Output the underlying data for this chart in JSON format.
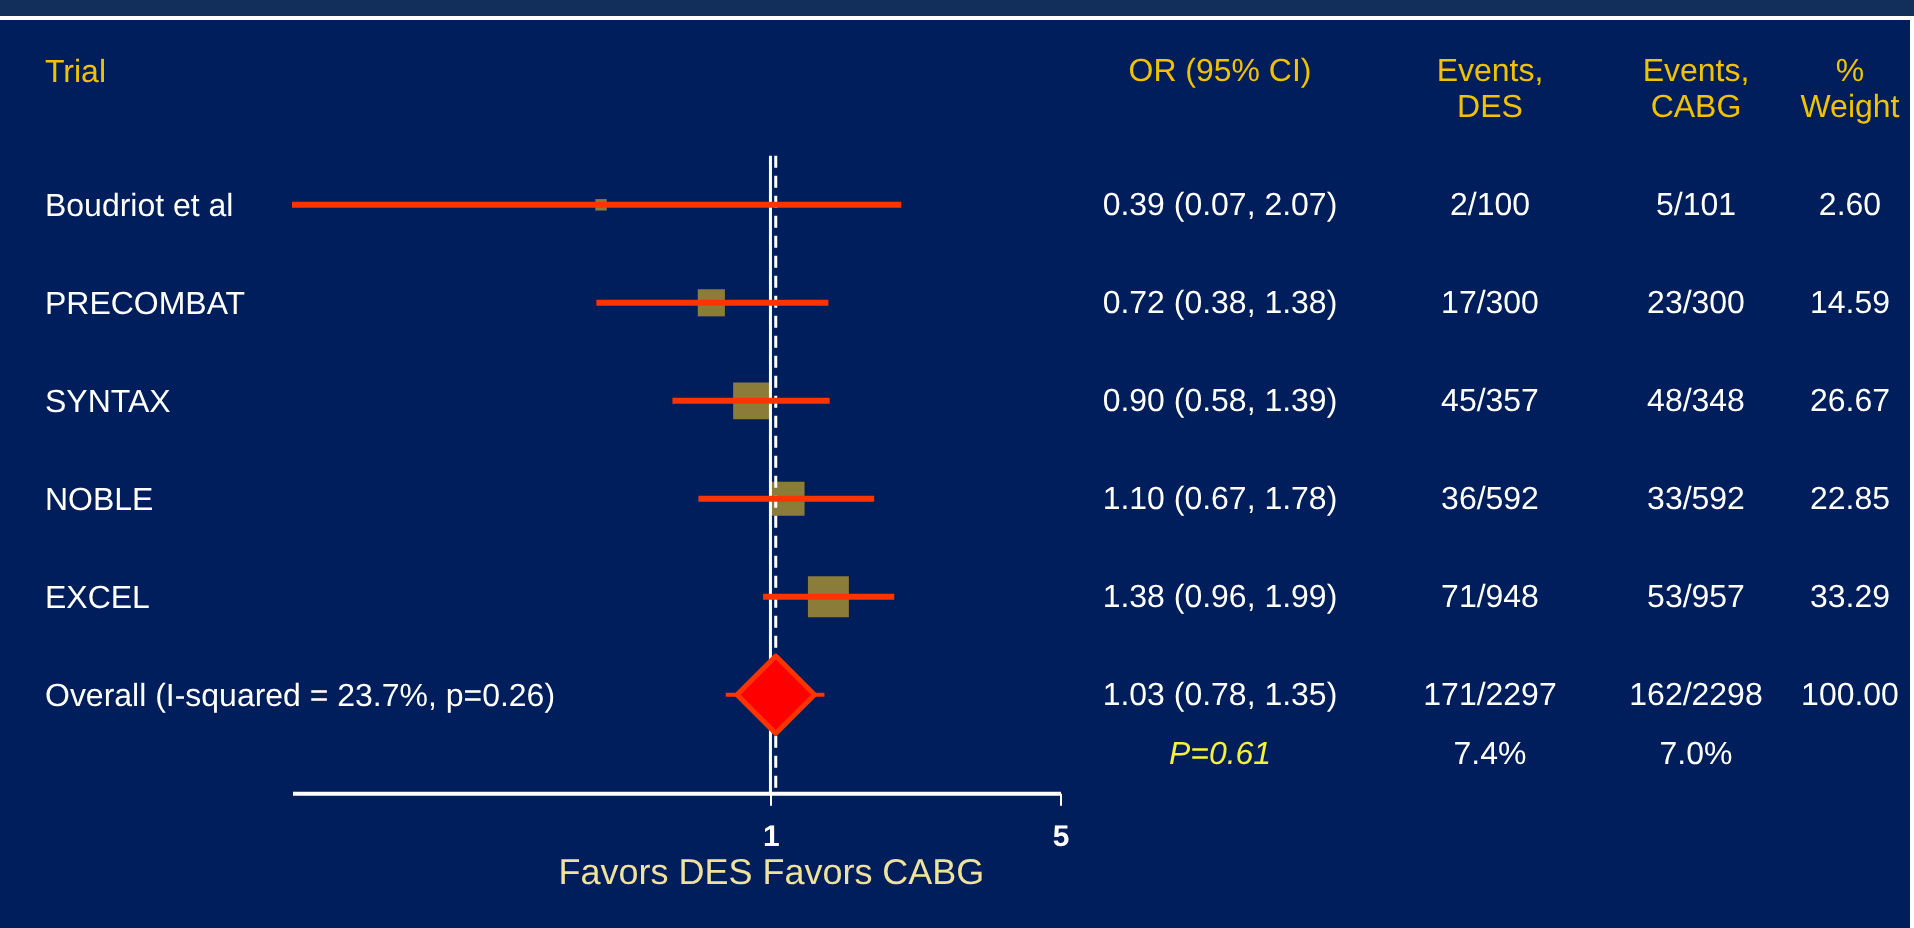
{
  "chart_data": {
    "type": "scatter",
    "orientation": "horizontal",
    "log": "x",
    "ylabel": "Trial",
    "xlabel": "Favors DES   Favors CABG",
    "categories": [
      "Boudriot et al",
      "PRECOMBAT",
      "SYNTAX",
      "NOBLE",
      "EXCEL",
      "Overall (I-squared = 23.7%, p=0.26)"
    ],
    "xlim": [
      0.07,
      5
    ],
    "xticks": [
      1,
      5
    ],
    "grid": false,
    "series": [
      {
        "color": "#8c7c3a",
        "marker": "square",
        "values": [
          0.39,
          0.72,
          0.9,
          1.1,
          1.38,
          null
        ],
        "errors": [
          [
            0.07,
            2.07
          ],
          [
            0.38,
            1.38
          ],
          [
            0.58,
            1.39
          ],
          [
            0.67,
            1.78
          ],
          [
            0.96,
            1.99
          ],
          null
        ],
        "sizes": [
          0.078,
          0.438,
          0.801,
          0.686,
          1,
          null
        ]
      },
      {
        "color": "#ff0000",
        "marker": "diamond",
        "values": [
          null,
          null,
          null,
          null,
          null,
          1.03
        ],
        "errors": [
          null,
          null,
          null,
          null,
          null,
          [
            0.78,
            1.35
          ]
        ]
      }
    ],
    "ref_lines": [
      {
        "axis": "x",
        "value": 1,
        "color": "#ffffff",
        "line_style": "solid"
      },
      {
        "axis": "x",
        "value": 1.03,
        "color": "#ffffff",
        "line_style": "dashed"
      }
    ],
    "annotations": [
      "OR (95% CI)",
      "Events, DES",
      "Events, CABG",
      "% Weight",
      "0.39 (0.07, 2.07)",
      "2/100",
      "5/101",
      "2.60",
      "0.72 (0.38, 1.38)",
      "17/300",
      "23/300",
      "14.59",
      "0.90 (0.58, 1.39)",
      "45/357",
      "48/348",
      "26.67",
      "1.10 (0.67, 1.78)",
      "36/592",
      "33/592",
      "22.85",
      "1.38 (0.96, 1.99)",
      "71/948",
      "53/957",
      "33.29",
      "1.03 (0.78, 1.35)",
      "171/2297",
      "162/2298",
      "100.00",
      "P=0.61",
      "7.4%",
      "7.0%"
    ]
  }
}
